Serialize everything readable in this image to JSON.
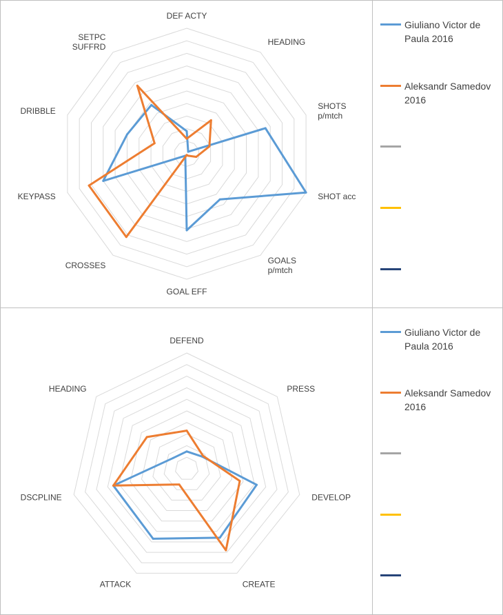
{
  "chart_data": [
    {
      "type": "radar",
      "title": "",
      "axes": [
        "DEF ACTY",
        "HEADING",
        "SHOTS p/mtch",
        "SHOT acc",
        "GOALS p/mtch",
        "GOAL EFF",
        "CROSSES",
        "KEYPASS",
        "DRIBBLE",
        "SETPC SUFFRD"
      ],
      "axis_label_lines": [
        [
          "DEF ACTY"
        ],
        [
          "HEADING"
        ],
        [
          "SHOTS",
          "p/mtch"
        ],
        [
          "SHOT acc"
        ],
        [
          "GOALS",
          "p/mtch"
        ],
        [
          "GOAL EFF"
        ],
        [
          "CROSSES"
        ],
        [
          "KEYPASS"
        ],
        [
          "DRIBBLE"
        ],
        [
          "SETPC",
          "SUFFRD"
        ]
      ],
      "range": [
        0,
        10
      ],
      "rings": 10,
      "grid": true,
      "legend": "right",
      "series": [
        {
          "name": "Giuliano Victor de Paula 2016",
          "legend_lines": [
            "Giuliano Victor de",
            "Paula 2016"
          ],
          "color": "#5b9bd5",
          "values": [
            1.8,
            0.2,
            6.6,
            10,
            4.5,
            6.1,
            0.2,
            7.0,
            5.0,
            4.8
          ]
        },
        {
          "name": "Aleksandr Samedov 2016",
          "legend_lines": [
            "Aleksandr Samedov",
            "2016"
          ],
          "color": "#ed7d31",
          "values": [
            1.2,
            3.3,
            1.9,
            0.8,
            0.2,
            0.1,
            8.2,
            8.2,
            2.7,
            6.7
          ]
        }
      ],
      "extra_legend": [
        {
          "color": "#a5a5a5"
        },
        {
          "color": "#ffc000"
        },
        {
          "color": "#264478"
        }
      ]
    },
    {
      "type": "radar",
      "title": "",
      "axes": [
        "DEFEND",
        "PRESS",
        "DEVELOP",
        "CREATE",
        "ATTACK",
        "DSCPLINE",
        "HEADING"
      ],
      "axis_label_lines": [
        [
          "DEFEND"
        ],
        [
          "PRESS"
        ],
        [
          "DEVELOP"
        ],
        [
          "CREATE"
        ],
        [
          "ATTACK"
        ],
        [
          "DSCPLINE"
        ],
        [
          "HEADING"
        ]
      ],
      "range": [
        0,
        10
      ],
      "rings": 10,
      "grid": true,
      "legend": "right",
      "series": [
        {
          "name": "Giuliano Victor de Paula 2016",
          "legend_lines": [
            "Giuliano Victor de",
            "Paula 2016"
          ],
          "color": "#5b9bd5",
          "values": [
            1.5,
            1.7,
            6.2,
            6.6,
            6.7,
            6.5,
            1.5
          ]
        },
        {
          "name": "Aleksandr Samedov 2016",
          "legend_lines": [
            "Aleksandr Samedov",
            "2016"
          ],
          "color": "#ed7d31",
          "values": [
            3.3,
            1.8,
            4.7,
            7.8,
            1.5,
            6.5,
            4.4
          ]
        }
      ],
      "extra_legend": [
        {
          "color": "#a5a5a5"
        },
        {
          "color": "#ffc000"
        },
        {
          "color": "#264478"
        }
      ]
    }
  ]
}
